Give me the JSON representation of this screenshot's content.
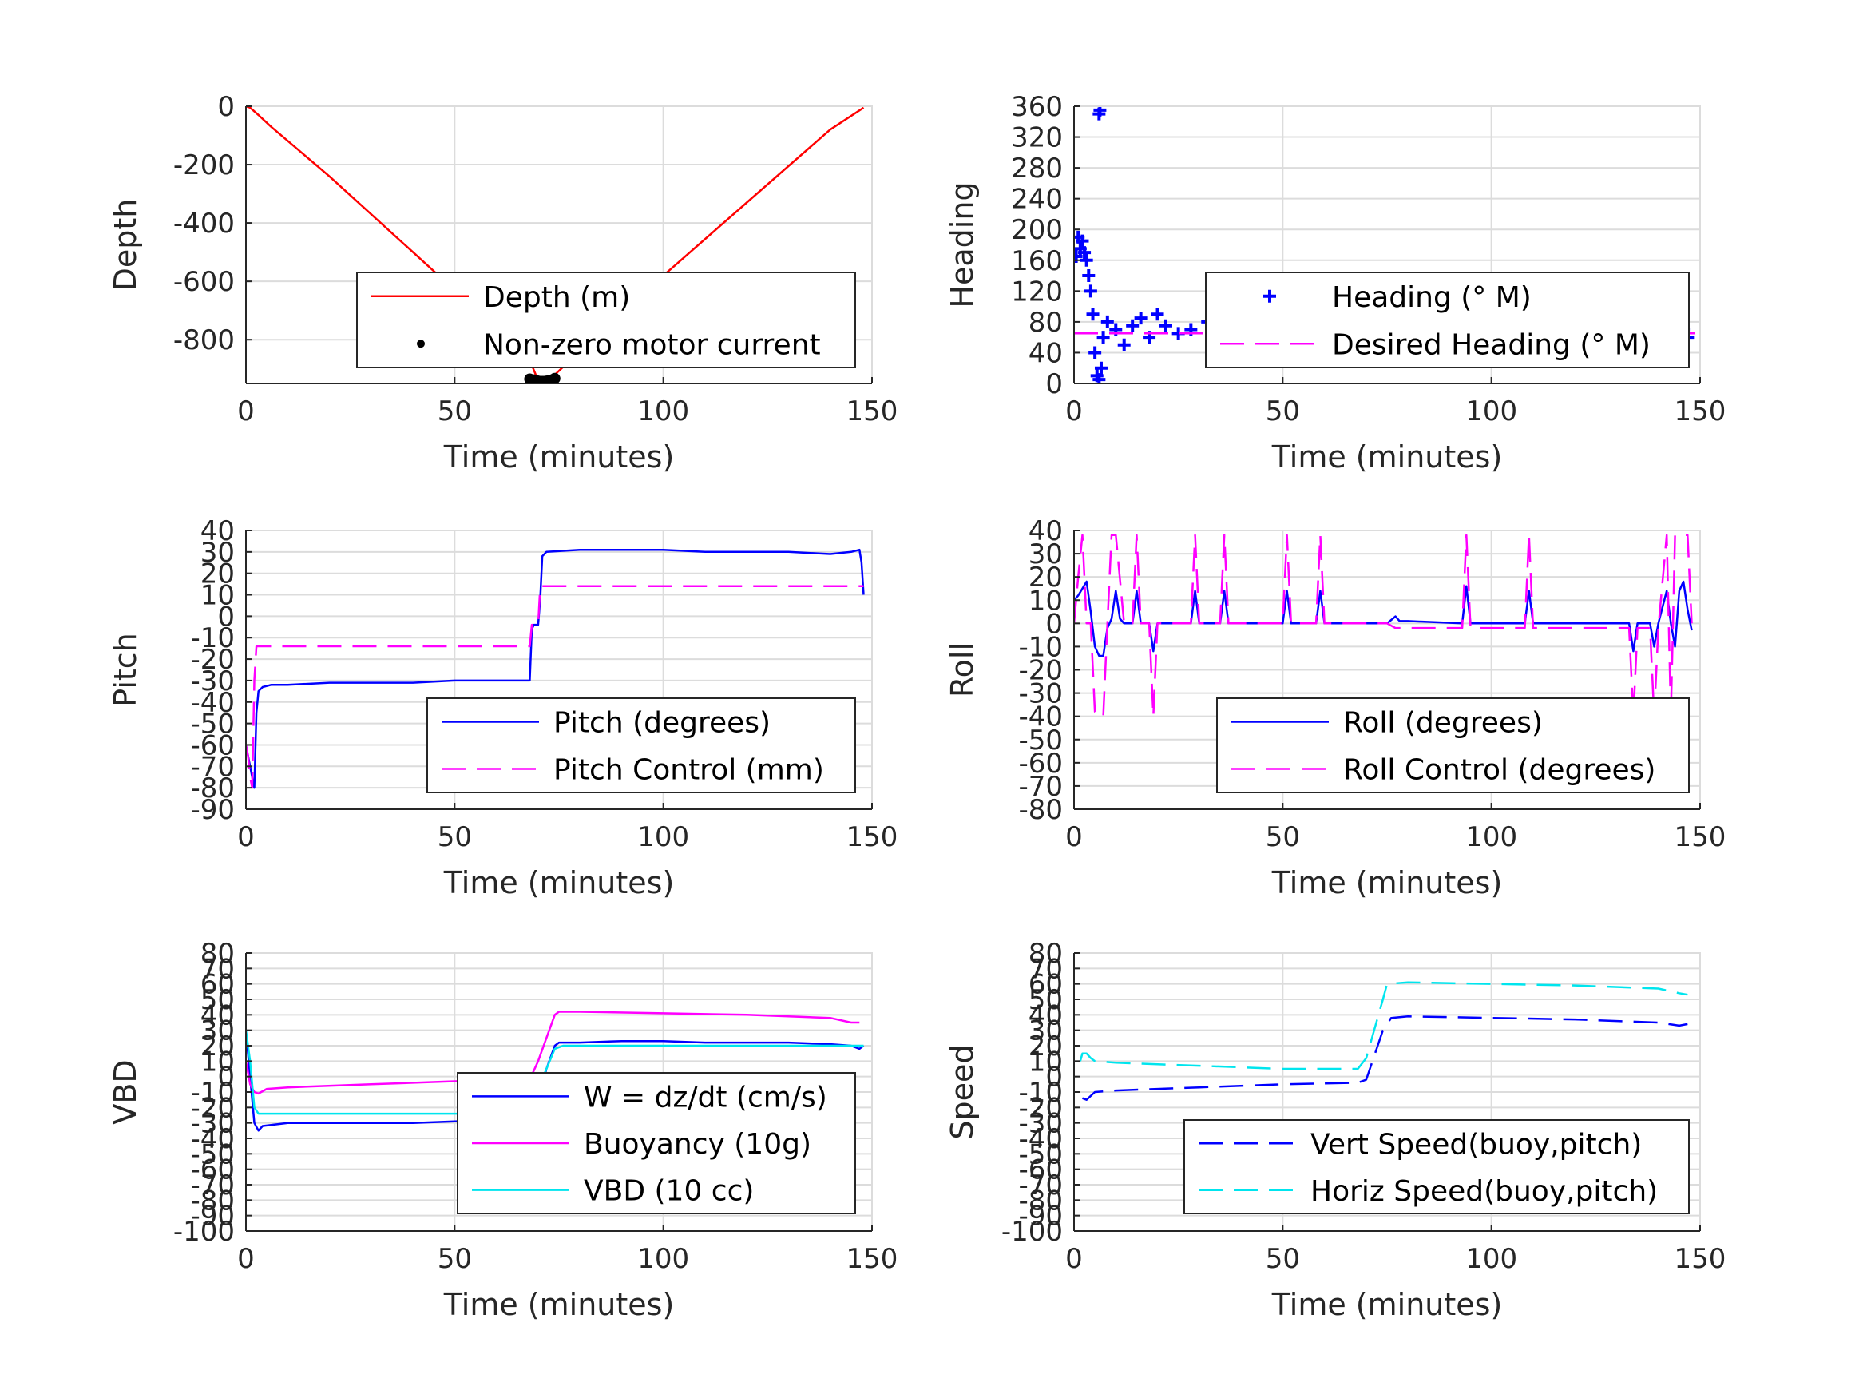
{
  "chart_data": [
    {
      "type": "line",
      "xlabel": "Time (minutes)",
      "ylabel": "Depth",
      "xlim": [
        0,
        150
      ],
      "ylim": [
        -950,
        0
      ],
      "xticks": [
        0,
        50,
        100,
        150
      ],
      "xtick_labels": [
        "0",
        "50",
        "100",
        "150"
      ],
      "yticks": [
        0,
        -200,
        -400,
        -600,
        -800
      ],
      "ytick_labels": [
        "0",
        "-200",
        "-400",
        "-600",
        "-800"
      ],
      "grid": true,
      "legend_position": "lower-right",
      "series": [
        {
          "name": "Depth (m)",
          "style": "solid",
          "color": "#ff0000",
          "x": [
            0,
            1,
            3,
            6,
            20,
            40,
            60,
            68,
            70,
            72,
            74,
            80,
            100,
            120,
            140,
            148
          ],
          "y": [
            0,
            -5,
            -30,
            -70,
            -240,
            -500,
            -760,
            -870,
            -940,
            -940,
            -920,
            -840,
            -580,
            -330,
            -80,
            -5
          ]
        },
        {
          "name": "Non-zero motor current",
          "style": "dots",
          "color": "#000000",
          "x": [
            68,
            69,
            69.5,
            70,
            70.5,
            71,
            71.5,
            72,
            72.5,
            73,
            73.5,
            74
          ],
          "y": [
            -935,
            -938,
            -940,
            -942,
            -943,
            -943,
            -943,
            -942,
            -941,
            -940,
            -937,
            -933
          ]
        }
      ]
    },
    {
      "type": "scatter",
      "xlabel": "Time (minutes)",
      "ylabel": "Heading",
      "xlim": [
        0,
        150
      ],
      "ylim": [
        0,
        360
      ],
      "xticks": [
        0,
        50,
        100,
        150
      ],
      "xtick_labels": [
        "0",
        "50",
        "100",
        "150"
      ],
      "yticks": [
        0,
        40,
        80,
        120,
        160,
        200,
        240,
        280,
        320,
        360
      ],
      "ytick_labels": [
        "0",
        "40",
        "80",
        "120",
        "160",
        "200",
        "240",
        "280",
        "320",
        "360"
      ],
      "grid": true,
      "legend_position": "right",
      "series": [
        {
          "name": "Heading (° M)",
          "style": "plus",
          "color": "#0000ff",
          "x": [
            0.5,
            1,
            1.5,
            2,
            2.5,
            3,
            3.5,
            4,
            4.5,
            5,
            5.5,
            6,
            6.5,
            7,
            8,
            10,
            12,
            14,
            16,
            18,
            20,
            22,
            25,
            28,
            32,
            35,
            38,
            42,
            45,
            48,
            52,
            55,
            58,
            62,
            65,
            68,
            72,
            75,
            78,
            82,
            85,
            88,
            92,
            95,
            98,
            102,
            105,
            108,
            112,
            115,
            118,
            122,
            125,
            128,
            132,
            135,
            138,
            142,
            144,
            145,
            146,
            147,
            6,
            6.2
          ],
          "y": [
            165,
            190,
            175,
            185,
            170,
            160,
            140,
            120,
            90,
            40,
            10,
            5,
            20,
            60,
            80,
            70,
            50,
            75,
            85,
            60,
            90,
            75,
            65,
            70,
            80,
            75,
            55,
            60,
            70,
            85,
            65,
            55,
            80,
            60,
            70,
            85,
            75,
            60,
            90,
            70,
            60,
            75,
            85,
            65,
            55,
            70,
            80,
            60,
            65,
            75,
            55,
            70,
            85,
            65,
            60,
            80,
            75,
            85,
            30,
            50,
            70,
            60,
            350,
            355
          ]
        },
        {
          "name": "Desired Heading (° M)",
          "style": "dashed",
          "color": "#ff00ff",
          "x": [
            0,
            150
          ],
          "y": [
            65,
            65
          ]
        }
      ]
    },
    {
      "type": "line",
      "xlabel": "Time (minutes)",
      "ylabel": "Pitch",
      "xlim": [
        0,
        150
      ],
      "ylim": [
        -90,
        40
      ],
      "xticks": [
        0,
        50,
        100,
        150
      ],
      "xtick_labels": [
        "0",
        "50",
        "100",
        "150"
      ],
      "yticks": [
        40,
        30,
        20,
        10,
        0,
        -10,
        -20,
        -30,
        -40,
        -50,
        -60,
        -70,
        -80,
        -90
      ],
      "ytick_labels": [
        "40",
        "30",
        "20",
        "10",
        "0",
        "-10",
        "-20",
        "-30",
        "-40",
        "-50",
        "-60",
        "-70",
        "-80",
        "-90"
      ],
      "grid": true,
      "legend_position": "lower-right",
      "series": [
        {
          "name": "Pitch (degrees)",
          "style": "solid",
          "color": "#0000ff",
          "x": [
            0,
            0.5,
            1,
            1.5,
            2,
            2.5,
            3,
            4,
            6,
            10,
            20,
            30,
            40,
            50,
            60,
            68,
            68.5,
            69,
            70,
            70.5,
            71,
            72,
            80,
            90,
            100,
            110,
            120,
            130,
            140,
            145,
            147,
            147.5,
            148
          ],
          "y": [
            -60,
            -65,
            -70,
            -75,
            -80,
            -45,
            -35,
            -33,
            -32,
            -32,
            -31,
            -31,
            -31,
            -30,
            -30,
            -30,
            -6,
            -4,
            -4,
            8,
            28,
            30,
            31,
            31,
            31,
            30,
            30,
            30,
            29,
            30,
            31,
            25,
            10
          ]
        },
        {
          "name": "Pitch Control (mm)",
          "style": "dashed",
          "color": "#ff00ff",
          "x": [
            0,
            0.5,
            1,
            1.5,
            2,
            2.5,
            3,
            10,
            30,
            50,
            68,
            68.5,
            70,
            70.5,
            71,
            80,
            100,
            120,
            140,
            148
          ],
          "y": [
            -60,
            -65,
            -75,
            -80,
            -30,
            -14,
            -14,
            -14,
            -14,
            -14,
            -14,
            -4,
            -4,
            14,
            14,
            14,
            14,
            14,
            14,
            14
          ]
        }
      ]
    },
    {
      "type": "line",
      "xlabel": "Time (minutes)",
      "ylabel": "Roll",
      "xlim": [
        0,
        150
      ],
      "ylim": [
        -80,
        40
      ],
      "xticks": [
        0,
        50,
        100,
        150
      ],
      "xtick_labels": [
        "0",
        "50",
        "100",
        "150"
      ],
      "yticks": [
        40,
        30,
        20,
        10,
        0,
        -10,
        -20,
        -30,
        -40,
        -50,
        -60,
        -70,
        -80
      ],
      "ytick_labels": [
        "40",
        "30",
        "20",
        "10",
        "0",
        "-10",
        "-20",
        "-30",
        "-40",
        "-50",
        "-60",
        "-70",
        "-80"
      ],
      "grid": true,
      "legend_position": "lower-right",
      "series": [
        {
          "name": "Roll (degrees)",
          "style": "solid",
          "color": "#0000ff",
          "x": [
            0,
            1,
            2,
            3,
            4,
            5,
            6,
            7,
            8,
            9,
            10,
            11,
            12,
            14,
            15,
            16,
            18,
            19,
            20,
            22,
            28,
            29,
            30,
            35,
            36,
            37,
            50,
            51,
            52,
            58,
            59,
            60,
            75,
            77,
            78,
            80,
            93,
            94,
            95,
            100,
            108,
            109,
            110,
            120,
            125,
            130,
            133,
            134,
            135,
            138,
            139,
            140,
            142,
            143,
            144,
            145,
            146,
            147,
            148
          ],
          "y": [
            10,
            12,
            15,
            18,
            5,
            -10,
            -14,
            -14,
            -2,
            2,
            14,
            2,
            0,
            0,
            14,
            0,
            0,
            -12,
            0,
            0,
            0,
            14,
            0,
            0,
            14,
            0,
            0,
            14,
            0,
            0,
            14,
            0,
            0,
            3,
            1,
            1,
            0,
            16,
            0,
            0,
            0,
            14,
            0,
            0,
            0,
            0,
            0,
            -12,
            0,
            0,
            -10,
            0,
            14,
            0,
            -10,
            14,
            18,
            6,
            -3
          ]
        },
        {
          "name": "Roll Control (degrees)",
          "style": "dashed",
          "color": "#ff00ff",
          "x": [
            0,
            1,
            2,
            3,
            4,
            5,
            6,
            7,
            8,
            9,
            10,
            12,
            14,
            15,
            16,
            18,
            19,
            20,
            28,
            29,
            30,
            35,
            36,
            37,
            50,
            51,
            52,
            58,
            59,
            60,
            75,
            77,
            78,
            93,
            94,
            95,
            108,
            109,
            110,
            133,
            134,
            135,
            138,
            139,
            140,
            142,
            143,
            144,
            145,
            146,
            147,
            148
          ],
          "y": [
            0,
            20,
            38,
            0,
            0,
            -38,
            -40,
            -40,
            0,
            38,
            38,
            0,
            0,
            38,
            0,
            0,
            -40,
            0,
            0,
            38,
            0,
            0,
            38,
            0,
            0,
            38,
            0,
            0,
            38,
            0,
            0,
            -2,
            -2,
            -2,
            38,
            -2,
            -2,
            38,
            -2,
            -2,
            -40,
            -2,
            -2,
            -40,
            -2,
            38,
            -40,
            38,
            38,
            38,
            38,
            0
          ]
        }
      ]
    },
    {
      "type": "line",
      "xlabel": "Time (minutes)",
      "ylabel": "VBD",
      "xlim": [
        0,
        150
      ],
      "ylim": [
        -100,
        80
      ],
      "xticks": [
        0,
        50,
        100,
        150
      ],
      "xtick_labels": [
        "0",
        "50",
        "100",
        "150"
      ],
      "yticks": [
        80,
        70,
        60,
        50,
        40,
        30,
        20,
        10,
        0,
        -10,
        -20,
        -30,
        -40,
        -50,
        -60,
        -70,
        -80,
        -90,
        -100
      ],
      "ytick_labels": [
        "80",
        "70",
        "60",
        "50",
        "40",
        "30",
        "20",
        "10",
        "0",
        "-10",
        "-20",
        "-30",
        "-40",
        "-50",
        "-60",
        "-70",
        "-80",
        "-90",
        "-100"
      ],
      "grid": true,
      "legend_position": "lower-right",
      "series": [
        {
          "name": "W = dz/dt (cm/s)",
          "style": "solid",
          "color": "#0000ff",
          "x": [
            0,
            1,
            2,
            3,
            4,
            10,
            20,
            40,
            60,
            68,
            69,
            70,
            72,
            74,
            75,
            80,
            90,
            100,
            110,
            120,
            130,
            140,
            145,
            147,
            148
          ],
          "y": [
            30,
            0,
            -30,
            -35,
            -32,
            -30,
            -30,
            -30,
            -28,
            -27,
            -20,
            -15,
            5,
            20,
            22,
            22,
            23,
            23,
            22,
            22,
            22,
            21,
            20,
            18,
            20
          ]
        },
        {
          "name": "Buoyancy (10g)",
          "style": "solid",
          "color": "#ff00ff",
          "x": [
            0,
            1,
            2,
            3,
            5,
            10,
            30,
            50,
            68,
            70,
            72,
            74,
            75,
            80,
            100,
            120,
            140,
            145,
            147
          ],
          "y": [
            10,
            -5,
            -10,
            -11,
            -8,
            -7,
            -5,
            -3,
            -2,
            10,
            25,
            40,
            42,
            42,
            41,
            40,
            38,
            35,
            35
          ]
        },
        {
          "name": "VBD (10 cc)",
          "style": "solid",
          "color": "#00e5ee",
          "x": [
            0,
            1,
            2,
            3,
            5,
            10,
            30,
            50,
            68,
            69,
            70,
            72,
            74,
            76,
            80,
            100,
            120,
            140,
            148
          ],
          "y": [
            30,
            10,
            -20,
            -24,
            -24,
            -24,
            -24,
            -24,
            -24,
            -10,
            -8,
            5,
            18,
            20,
            20,
            20,
            20,
            20,
            20
          ]
        }
      ]
    },
    {
      "type": "line",
      "xlabel": "Time (minutes)",
      "ylabel": "Speed",
      "xlim": [
        0,
        150
      ],
      "ylim": [
        -100,
        80
      ],
      "xticks": [
        0,
        50,
        100,
        150
      ],
      "xtick_labels": [
        "0",
        "50",
        "100",
        "150"
      ],
      "yticks": [
        80,
        70,
        60,
        50,
        40,
        30,
        20,
        10,
        0,
        -10,
        -20,
        -30,
        -40,
        -50,
        -60,
        -70,
        -80,
        -90,
        -100
      ],
      "ytick_labels": [
        "80",
        "70",
        "60",
        "50",
        "40",
        "30",
        "20",
        "10",
        "0",
        "-10",
        "-20",
        "-30",
        "-40",
        "-50",
        "-60",
        "-70",
        "-80",
        "-90",
        "-100"
      ],
      "grid": true,
      "legend_position": "lower-right",
      "series": [
        {
          "name": "Vert Speed(buoy,pitch)",
          "style": "dashed",
          "color": "#0000ff",
          "x": [
            2,
            3,
            5,
            10,
            30,
            50,
            68,
            70,
            74,
            76,
            80,
            100,
            120,
            140,
            145,
            147
          ],
          "y": [
            -14,
            -15,
            -10,
            -9,
            -7,
            -5,
            -4,
            -2,
            30,
            38,
            39,
            38,
            37,
            35,
            33,
            34
          ]
        },
        {
          "name": "Horiz Speed(buoy,pitch)",
          "style": "dashed",
          "color": "#00e5ee",
          "x": [
            1.5,
            2,
            3,
            4,
            5,
            10,
            30,
            50,
            68,
            70,
            74,
            75,
            80,
            100,
            120,
            140,
            145,
            147
          ],
          "y": [
            10,
            15,
            15,
            12,
            10,
            9,
            7,
            5,
            5,
            12,
            50,
            60,
            61,
            60,
            59,
            57,
            54,
            53
          ]
        }
      ]
    }
  ]
}
